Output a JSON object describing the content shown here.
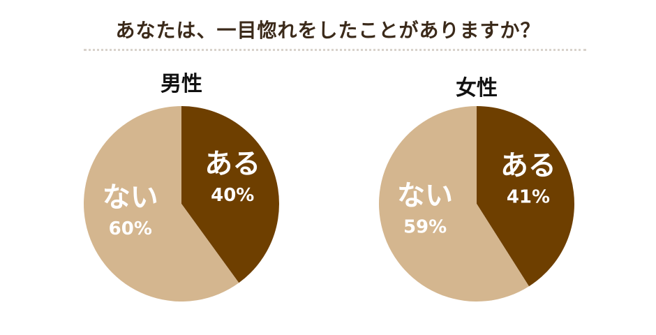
{
  "question": "あなたは、一目惚れをしたことがありますか？",
  "chart_data": [
    {
      "type": "pie",
      "title": "男性",
      "slices": [
        {
          "label": "ある",
          "value": 40,
          "value_label": "40%",
          "color": "#6e3f00"
        },
        {
          "label": "ない",
          "value": 60,
          "value_label": "60%",
          "color": "#d4b68f"
        }
      ]
    },
    {
      "type": "pie",
      "title": "女性",
      "slices": [
        {
          "label": "ある",
          "value": 41,
          "value_label": "41%",
          "color": "#6e3f00"
        },
        {
          "label": "ない",
          "value": 59,
          "value_label": "59%",
          "color": "#d4b68f"
        }
      ]
    }
  ]
}
